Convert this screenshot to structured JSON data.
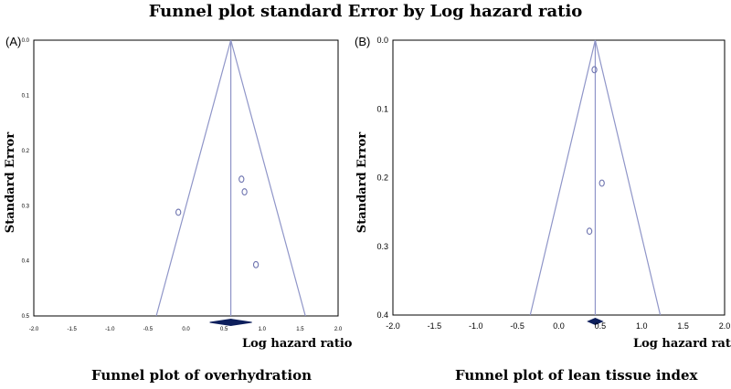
{
  "figure_title": "Funnel plot standard Error by Log hazard ratio",
  "chart_data": [
    {
      "type": "scatter",
      "panel": "(A)",
      "title": "Funnel plot of overhydration",
      "xlabel": "Log hazard ratio",
      "ylabel": "Standard Error",
      "xlim": [
        -2.0,
        2.0
      ],
      "ylim": [
        0.0,
        0.5
      ],
      "y_reversed": true,
      "x_ticks": [
        "-2.0",
        "-1.5",
        "-1.0",
        "-0.5",
        "0.0",
        "0.5",
        "1.0",
        "1.5",
        "2.0"
      ],
      "y_ticks": [
        "0.0",
        "0.1",
        "0.2",
        "0.3",
        "0.4",
        "0.5"
      ],
      "pooled_estimate": 0.59,
      "points": [
        {
          "x": -0.1,
          "y": 0.312
        },
        {
          "x": 0.73,
          "y": 0.252
        },
        {
          "x": 0.77,
          "y": 0.275
        },
        {
          "x": 0.92,
          "y": 0.407
        }
      ],
      "colors": {
        "funnel": "#8f95c8",
        "points": "#6f75b0",
        "diamond": "#0d1f5c"
      }
    },
    {
      "type": "scatter",
      "panel": "(B)",
      "title": "Funnel plot of lean tissue index",
      "xlabel": "Log hazard ratio",
      "ylabel": "Standard Error",
      "xlim": [
        -2.0,
        2.0
      ],
      "ylim": [
        0.0,
        0.4
      ],
      "y_reversed": true,
      "x_ticks": [
        "-2.0",
        "-1.5",
        "-1.0",
        "-0.5",
        "0.0",
        "0.5",
        "1.0",
        "1.5",
        "2.0"
      ],
      "y_ticks": [
        "0.0",
        "0.1",
        "0.2",
        "0.3",
        "0.4"
      ],
      "pooled_estimate": 0.44,
      "points": [
        {
          "x": 0.43,
          "y": 0.043
        },
        {
          "x": 0.52,
          "y": 0.208
        },
        {
          "x": 0.37,
          "y": 0.278
        }
      ],
      "colors": {
        "funnel": "#8f95c8",
        "points": "#6f75b0",
        "diamond": "#0d1f5c"
      }
    }
  ]
}
